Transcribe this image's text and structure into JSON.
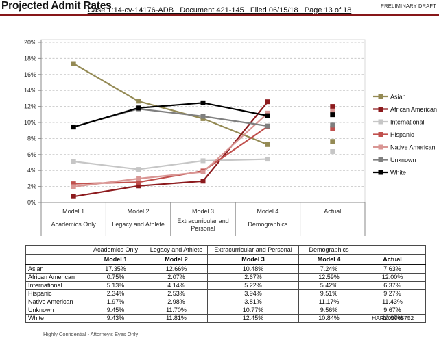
{
  "header": {
    "title": "Projected Admit Rates",
    "preliminary": "PRELIMINARY DRAFT",
    "case_caption": "Case 1:14-cv-14176-ADB   Document 421-145   Filed 06/15/18   Page 13 of 18",
    "caption_rule_color": "#871719"
  },
  "chart_data": {
    "type": "line",
    "title": "",
    "categories": [
      "Model 1",
      "Model 2",
      "Model 3",
      "Model 4",
      "Actual"
    ],
    "category_sublabels": [
      "Academics Only",
      "Legacy and Athlete",
      "Extracurricular and Personal",
      "Demographics",
      ""
    ],
    "ylim": [
      0,
      20
    ],
    "ytick_step": 2,
    "ytick_suffix": "%",
    "grid": "dashed",
    "legend_position": "right",
    "series": [
      {
        "name": "Asian",
        "color": "#948A54",
        "values": [
          17.35,
          12.66,
          10.48,
          7.24
        ],
        "actual": 7.63
      },
      {
        "name": "African American",
        "color": "#8C1A1D",
        "values": [
          0.75,
          2.07,
          2.67,
          12.59
        ],
        "actual": 12.0
      },
      {
        "name": "International",
        "color": "#C6C6C6",
        "values": [
          5.13,
          4.14,
          5.22,
          5.42
        ],
        "actual": 6.37
      },
      {
        "name": "Hispanic",
        "color": "#C0504D",
        "values": [
          2.34,
          2.53,
          3.94,
          9.51
        ],
        "actual": 9.27
      },
      {
        "name": "Native American",
        "color": "#D99694",
        "values": [
          1.97,
          2.98,
          3.81,
          11.17
        ],
        "actual": 11.43
      },
      {
        "name": "Unknown",
        "color": "#7F7F7F",
        "values": [
          9.45,
          11.7,
          10.77,
          9.56
        ],
        "actual": 9.67
      },
      {
        "name": "White",
        "color": "#000000",
        "values": [
          9.43,
          11.81,
          12.45,
          10.84
        ],
        "actual": 10.97
      }
    ]
  },
  "table": {
    "group_headers": [
      "",
      "Academics Only",
      "Legacy and Athlete",
      "Extracurricular and Personal",
      "Demographics",
      ""
    ],
    "model_headers": [
      "",
      "Model 1",
      "Model 2",
      "Model 3",
      "Model 4",
      "Actual"
    ],
    "rows": [
      {
        "label": "Asian",
        "values": [
          "17.35%",
          "12.66%",
          "10.48%",
          "7.24%",
          "7.63%"
        ]
      },
      {
        "label": "African American",
        "values": [
          "0.75%",
          "2.07%",
          "2.67%",
          "12.59%",
          "12.00%"
        ]
      },
      {
        "label": "International",
        "values": [
          "5.13%",
          "4.14%",
          "5.22%",
          "5.42%",
          "6.37%"
        ]
      },
      {
        "label": "Hispanic",
        "values": [
          "2.34%",
          "2.53%",
          "3.94%",
          "9.51%",
          "9.27%"
        ]
      },
      {
        "label": "Native American",
        "values": [
          "1.97%",
          "2.98%",
          "3.81%",
          "11.17%",
          "11.43%"
        ]
      },
      {
        "label": "Unknown",
        "values": [
          "9.45%",
          "11.70%",
          "10.77%",
          "9.56%",
          "9.67%"
        ]
      },
      {
        "label": "White",
        "values": [
          "9.43%",
          "11.81%",
          "12.45%",
          "10.84%",
          "10.97%"
        ],
        "stamp_overlay": true
      }
    ]
  },
  "footer": {
    "confidential": "Highly Confidential - Attorney's Eyes Only",
    "stamp": "HARV00065752"
  }
}
